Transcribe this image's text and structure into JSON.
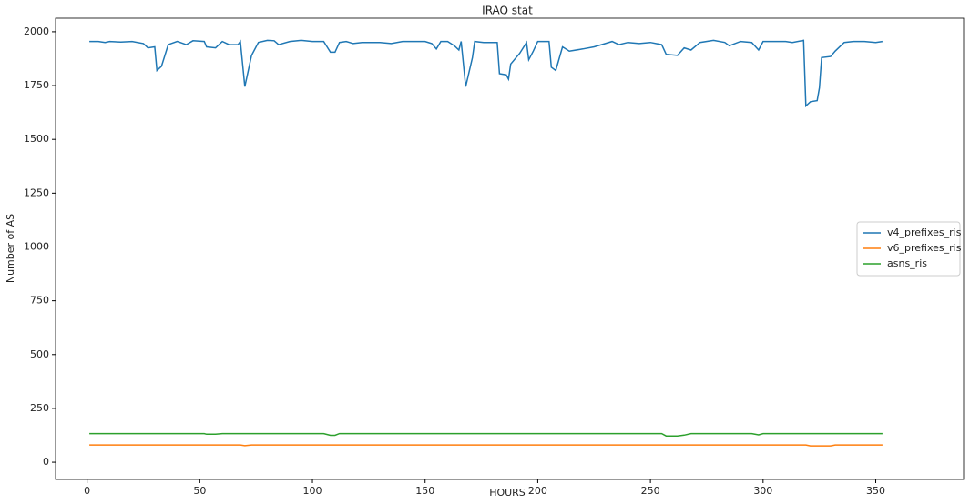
{
  "chart_data": {
    "type": "line",
    "title": "IRAQ stat",
    "x_label": "HOURS",
    "y_label": "Number of AS",
    "x": [
      1,
      5,
      8,
      10,
      15,
      20,
      25,
      27,
      30,
      31,
      33,
      36,
      40,
      44,
      47,
      52,
      53,
      57,
      60,
      63,
      67,
      68,
      70,
      73,
      76,
      80,
      83,
      85,
      90,
      95,
      100,
      105,
      108,
      110,
      112,
      115,
      118,
      122,
      130,
      135,
      140,
      150,
      153,
      155,
      157,
      160,
      163,
      165,
      166,
      168,
      171,
      172,
      176,
      182,
      183,
      186,
      187,
      188,
      192,
      195,
      196,
      198,
      200,
      203,
      205,
      206,
      208,
      211,
      214,
      220,
      225,
      230,
      233,
      236,
      240,
      245,
      250,
      255,
      257,
      262,
      265,
      268,
      272,
      278,
      283,
      285,
      290,
      295,
      298,
      300,
      305,
      310,
      313,
      318,
      319,
      321,
      324,
      325,
      326,
      330,
      332,
      336,
      340,
      345,
      350,
      353
    ],
    "series": [
      {
        "name": "v4_prefixes_ris",
        "color": "#1f77b4",
        "values": [
          1955,
          1955,
          1950,
          1955,
          1952,
          1955,
          1945,
          1925,
          1930,
          1820,
          1840,
          1940,
          1955,
          1940,
          1958,
          1955,
          1930,
          1925,
          1955,
          1940,
          1940,
          1955,
          1745,
          1890,
          1950,
          1960,
          1958,
          1940,
          1955,
          1960,
          1955,
          1955,
          1905,
          1905,
          1950,
          1955,
          1945,
          1950,
          1950,
          1945,
          1955,
          1955,
          1945,
          1920,
          1955,
          1955,
          1935,
          1915,
          1955,
          1745,
          1880,
          1955,
          1950,
          1950,
          1805,
          1800,
          1780,
          1850,
          1900,
          1950,
          1870,
          1910,
          1955,
          1955,
          1955,
          1835,
          1820,
          1930,
          1910,
          1920,
          1930,
          1945,
          1955,
          1940,
          1950,
          1945,
          1950,
          1940,
          1895,
          1890,
          1925,
          1915,
          1950,
          1960,
          1950,
          1935,
          1955,
          1950,
          1915,
          1955,
          1955,
          1955,
          1950,
          1960,
          1655,
          1675,
          1680,
          1740,
          1880,
          1885,
          1910,
          1950,
          1955,
          1955,
          1950,
          1955
        ]
      },
      {
        "name": "v6_prefixes_ris",
        "color": "#ff7f0e",
        "values": [
          80,
          80,
          80,
          80,
          80,
          80,
          80,
          80,
          80,
          80,
          80,
          80,
          80,
          80,
          80,
          80,
          80,
          80,
          80,
          80,
          80,
          80,
          77,
          80,
          80,
          80,
          80,
          80,
          80,
          80,
          80,
          80,
          80,
          80,
          80,
          80,
          80,
          80,
          80,
          80,
          80,
          80,
          80,
          80,
          80,
          80,
          80,
          80,
          80,
          80,
          80,
          80,
          80,
          80,
          80,
          80,
          80,
          80,
          80,
          80,
          80,
          80,
          80,
          80,
          80,
          80,
          80,
          80,
          80,
          80,
          80,
          80,
          80,
          80,
          80,
          80,
          80,
          80,
          80,
          80,
          80,
          80,
          80,
          80,
          80,
          80,
          80,
          80,
          80,
          80,
          80,
          80,
          80,
          80,
          80,
          76,
          76,
          76,
          76,
          76,
          80,
          80,
          80,
          80,
          80,
          80
        ]
      },
      {
        "name": "asns_ris",
        "color": "#2ca02c",
        "values": [
          133,
          133,
          133,
          133,
          133,
          133,
          133,
          133,
          133,
          133,
          133,
          133,
          133,
          133,
          133,
          133,
          130,
          130,
          133,
          133,
          133,
          133,
          133,
          133,
          133,
          133,
          133,
          133,
          133,
          133,
          133,
          133,
          125,
          125,
          133,
          133,
          133,
          133,
          133,
          133,
          133,
          133,
          133,
          133,
          133,
          133,
          133,
          133,
          133,
          133,
          133,
          133,
          133,
          133,
          133,
          133,
          133,
          133,
          133,
          133,
          133,
          133,
          133,
          133,
          133,
          133,
          133,
          133,
          133,
          133,
          133,
          133,
          133,
          133,
          133,
          133,
          133,
          133,
          122,
          122,
          126,
          133,
          133,
          133,
          133,
          133,
          133,
          133,
          127,
          133,
          133,
          133,
          133,
          133,
          133,
          133,
          133,
          133,
          133,
          133,
          133,
          133,
          133,
          133,
          133,
          133
        ]
      }
    ],
    "xlim": [
      -14,
      389
    ],
    "ylim": [
      -80,
      2063
    ],
    "xticks": [
      0,
      50,
      100,
      150,
      200,
      250,
      300,
      350
    ],
    "yticks": [
      0,
      250,
      500,
      750,
      1000,
      1250,
      1500,
      1750,
      2000
    ],
    "legend": "center right"
  }
}
